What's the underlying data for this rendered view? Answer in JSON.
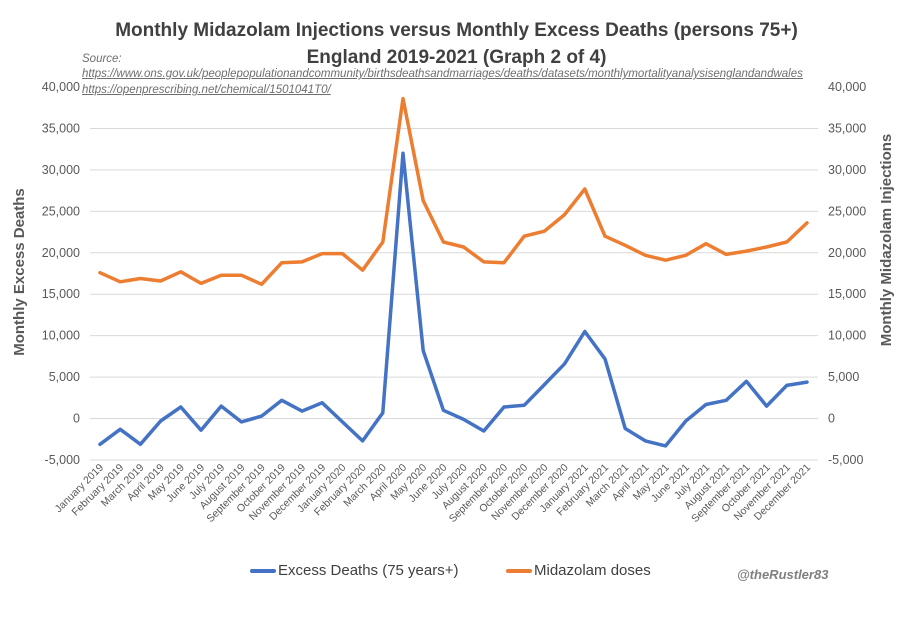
{
  "chart_data": {
    "type": "line",
    "title": "Monthly Midazolam Injections versus Monthly Excess Deaths (persons 75+)",
    "subtitle": "England 2019-2021 (Graph 2 of 4)",
    "source_label": "Source:",
    "sources": [
      "https://www.ons.gov.uk/peoplepopulationandcommunity/birthsdeathsandmarriages/deaths/datasets/monthlymortalityanalysisenglandandwales",
      "https://openprescribing.net/chemical/1501041T0/"
    ],
    "ylabel": "Monthly Excess Deaths",
    "y2label": "Monthly Midazolam Injections",
    "ylim": [
      -5000,
      40000
    ],
    "y2lim": [
      -5000,
      40000
    ],
    "yticks": [
      "-5,000",
      "0",
      "5,000",
      "10,000",
      "15,000",
      "20,000",
      "25,000",
      "30,000",
      "35,000",
      "40,000"
    ],
    "ytick_values": [
      -5000,
      0,
      5000,
      10000,
      15000,
      20000,
      25000,
      30000,
      35000,
      40000
    ],
    "grid": true,
    "legend_position": "bottom",
    "categories": [
      "January 2019",
      "February 2019",
      "March 2019",
      "April 2019",
      "May 2019",
      "June 2019",
      "July 2019",
      "August 2019",
      "September 2019",
      "October 2019",
      "November 2019",
      "December 2019",
      "January 2020",
      "February 2020",
      "March 2020",
      "April 2020",
      "May 2020",
      "June 2020",
      "July 2020",
      "August 2020",
      "September 2020",
      "October 2020",
      "November 2020",
      "December 2020",
      "January 2021",
      "February 2021",
      "March 2021",
      "April 2021",
      "May 2021",
      "June 2021",
      "July 2021",
      "August 2021",
      "September 2021",
      "October 2021",
      "November 2021",
      "December 2021"
    ],
    "series": [
      {
        "name": "Excess Deaths (75 years+)",
        "axis": "left",
        "color": "#4472c4",
        "values": [
          -3100,
          -1300,
          -3100,
          -300,
          1400,
          -1400,
          1500,
          -400,
          300,
          2200,
          900,
          1900,
          -400,
          -2700,
          700,
          32000,
          8200,
          1000,
          -100,
          -1500,
          1400,
          1600,
          4100,
          6600,
          10500,
          7200,
          -1200,
          -2700,
          -3300,
          -300,
          1700,
          2200,
          4500,
          1500,
          4000,
          4400
        ]
      },
      {
        "name": "Midazolam doses",
        "axis": "right",
        "color": "#ed7d31",
        "values": [
          17600,
          16500,
          16900,
          16600,
          17700,
          16300,
          17300,
          17300,
          16200,
          18800,
          18900,
          19900,
          19900,
          17900,
          21300,
          38600,
          26300,
          21300,
          20700,
          18900,
          18800,
          22000,
          22600,
          24600,
          27700,
          22000,
          20900,
          19700,
          19100,
          19700,
          21100,
          19800,
          20200,
          20700,
          21300,
          23600
        ]
      }
    ]
  },
  "credit": "@theRustler83"
}
